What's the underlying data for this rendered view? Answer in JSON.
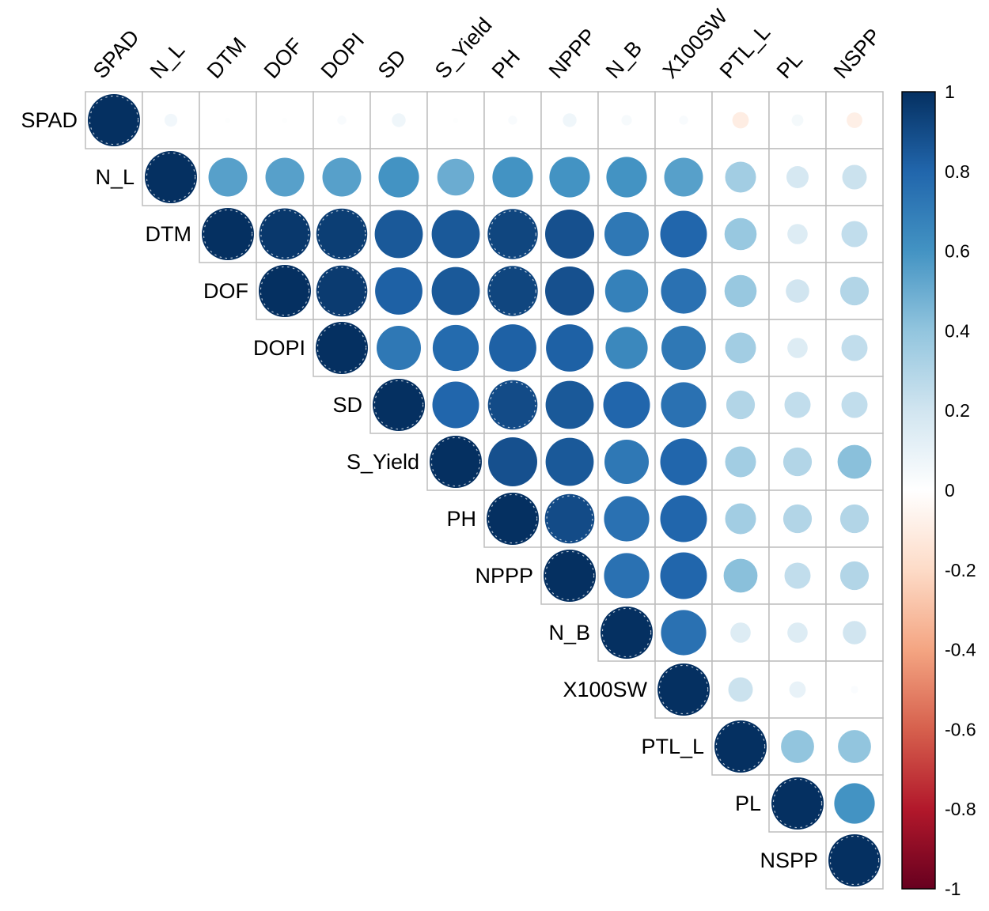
{
  "figure": {
    "background": "#ffffff",
    "description_label": ""
  },
  "chart_data": {
    "type": "heatmap",
    "style": "corrplot-upper-triangle-circles",
    "title": "",
    "variables": [
      "SPAD",
      "N_L",
      "DTM",
      "DOF",
      "DOPI",
      "SD",
      "S_Yield",
      "PH",
      "NPPP",
      "N_B",
      "X100SW",
      "PTL_L",
      "PL",
      "NSPP"
    ],
    "upper_triangle_rows": [
      [
        1,
        0.06,
        0.01,
        0.01,
        0.03,
        0.07,
        0.01,
        0.03,
        0.07,
        0.04,
        0.03,
        -0.1,
        0.05,
        -0.09
      ],
      [
        1,
        0.55,
        0.55,
        0.55,
        0.6,
        0.5,
        0.6,
        0.6,
        0.6,
        0.55,
        0.35,
        0.18,
        0.22
      ],
      [
        1,
        0.97,
        0.95,
        0.85,
        0.85,
        0.92,
        0.88,
        0.72,
        0.8,
        0.38,
        0.15,
        0.25
      ],
      [
        1,
        0.96,
        0.82,
        0.85,
        0.92,
        0.88,
        0.68,
        0.75,
        0.38,
        0.2,
        0.3
      ],
      [
        1,
        0.72,
        0.78,
        0.82,
        0.82,
        0.65,
        0.72,
        0.35,
        0.15,
        0.25
      ],
      [
        1,
        0.8,
        0.9,
        0.85,
        0.8,
        0.75,
        0.3,
        0.25,
        0.25
      ],
      [
        1,
        0.88,
        0.85,
        0.72,
        0.8,
        0.35,
        0.3,
        0.42
      ],
      [
        1,
        0.9,
        0.75,
        0.8,
        0.35,
        0.3,
        0.3
      ],
      [
        1,
        0.75,
        0.8,
        0.42,
        0.25,
        0.3
      ],
      [
        1,
        0.75,
        0.15,
        0.15,
        0.2
      ],
      [
        1,
        0.22,
        0.1,
        0.02
      ],
      [
        1,
        0.4,
        0.4
      ],
      [
        1,
        0.6
      ],
      [
        1
      ]
    ],
    "value_range": [
      -1,
      1
    ],
    "grid_on": true,
    "grid_color": "#bdbdbd",
    "label_color": "#000000",
    "colorbar": {
      "position": "right",
      "min": -1,
      "max": 1,
      "ticks": [
        "1",
        "0.8",
        "0.6",
        "0.4",
        "0.2",
        "0",
        "-0.2",
        "-0.4",
        "-0.6",
        "-0.8",
        "-1"
      ],
      "palette_top_to_bottom": [
        "#053061",
        "#2166AC",
        "#4393C3",
        "#92C5DE",
        "#D1E5F0",
        "#FFFFFF",
        "#FDDBC7",
        "#F4A582",
        "#D6604D",
        "#B2182B",
        "#67001F"
      ],
      "border_color": "#000000"
    }
  }
}
